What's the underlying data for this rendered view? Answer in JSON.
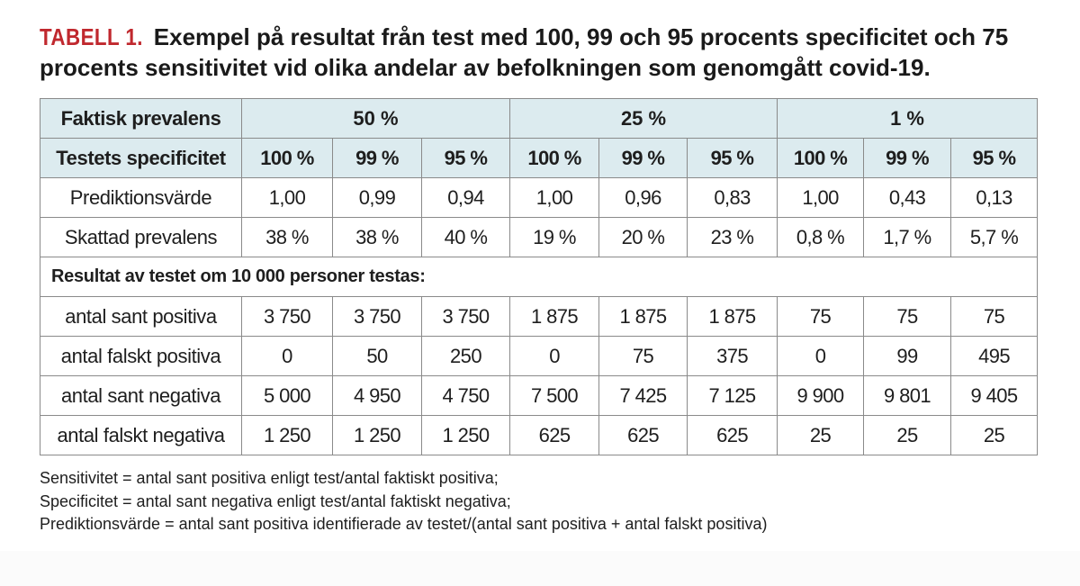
{
  "caption": {
    "label": "TABELL 1.",
    "text": "Exempel på resultat från test med 100, 99 och 95 procents specificitet och 75 procents sensitivitet vid olika andelar av befolkningen som genomgått covid-19."
  },
  "table": {
    "prevalence_label": "Faktisk prevalens",
    "prevalence_groups": [
      "50 %",
      "25 %",
      "1 %"
    ],
    "specificity_label": "Testets specificitet",
    "specificities": [
      "100 %",
      "99 %",
      "95 %",
      "100 %",
      "99 %",
      "95 %",
      "100 %",
      "99 %",
      "95 %"
    ],
    "rows_top": [
      {
        "label": "Prediktionsvärde",
        "values": [
          "1,00",
          "0,99",
          "0,94",
          "1,00",
          "0,96",
          "0,83",
          "1,00",
          "0,43",
          "0,13"
        ]
      },
      {
        "label": "Skattad prevalens",
        "values": [
          "38 %",
          "38 %",
          "40 %",
          "19 %",
          "20 %",
          "23 %",
          "0,8 %",
          "1,7 %",
          "5,7 %"
        ]
      }
    ],
    "section_label": "Resultat av testet om 10 000 personer testas:",
    "rows_bottom": [
      {
        "label": "antal sant positiva",
        "values": [
          "3 750",
          "3 750",
          "3 750",
          "1 875",
          "1 875",
          "1 875",
          "75",
          "75",
          "75"
        ]
      },
      {
        "label": "antal falskt positiva",
        "values": [
          "0",
          "50",
          "250",
          "0",
          "75",
          "375",
          "0",
          "99",
          "495"
        ]
      },
      {
        "label": "antal sant negativa",
        "values": [
          "5 000",
          "4 950",
          "4 750",
          "7 500",
          "7 425",
          "7 125",
          "9 900",
          "9 801",
          "9 405"
        ]
      },
      {
        "label": "antal falskt negativa",
        "values": [
          "1 250",
          "1 250",
          "1 250",
          "625",
          "625",
          "625",
          "25",
          "25",
          "25"
        ]
      }
    ]
  },
  "notes": [
    "Sensitivitet = antal sant positiva enligt test/antal faktiskt positiva;",
    "Specificitet = antal sant negativa enligt test/antal faktiskt negativa;",
    "Prediktionsvärde = antal sant positiva identifierade av testet/(antal sant positiva + antal falskt positiva)"
  ],
  "colors": {
    "label_red": "#c0282e",
    "header_fill": "#dcebef",
    "border": "#8a8a8a"
  }
}
